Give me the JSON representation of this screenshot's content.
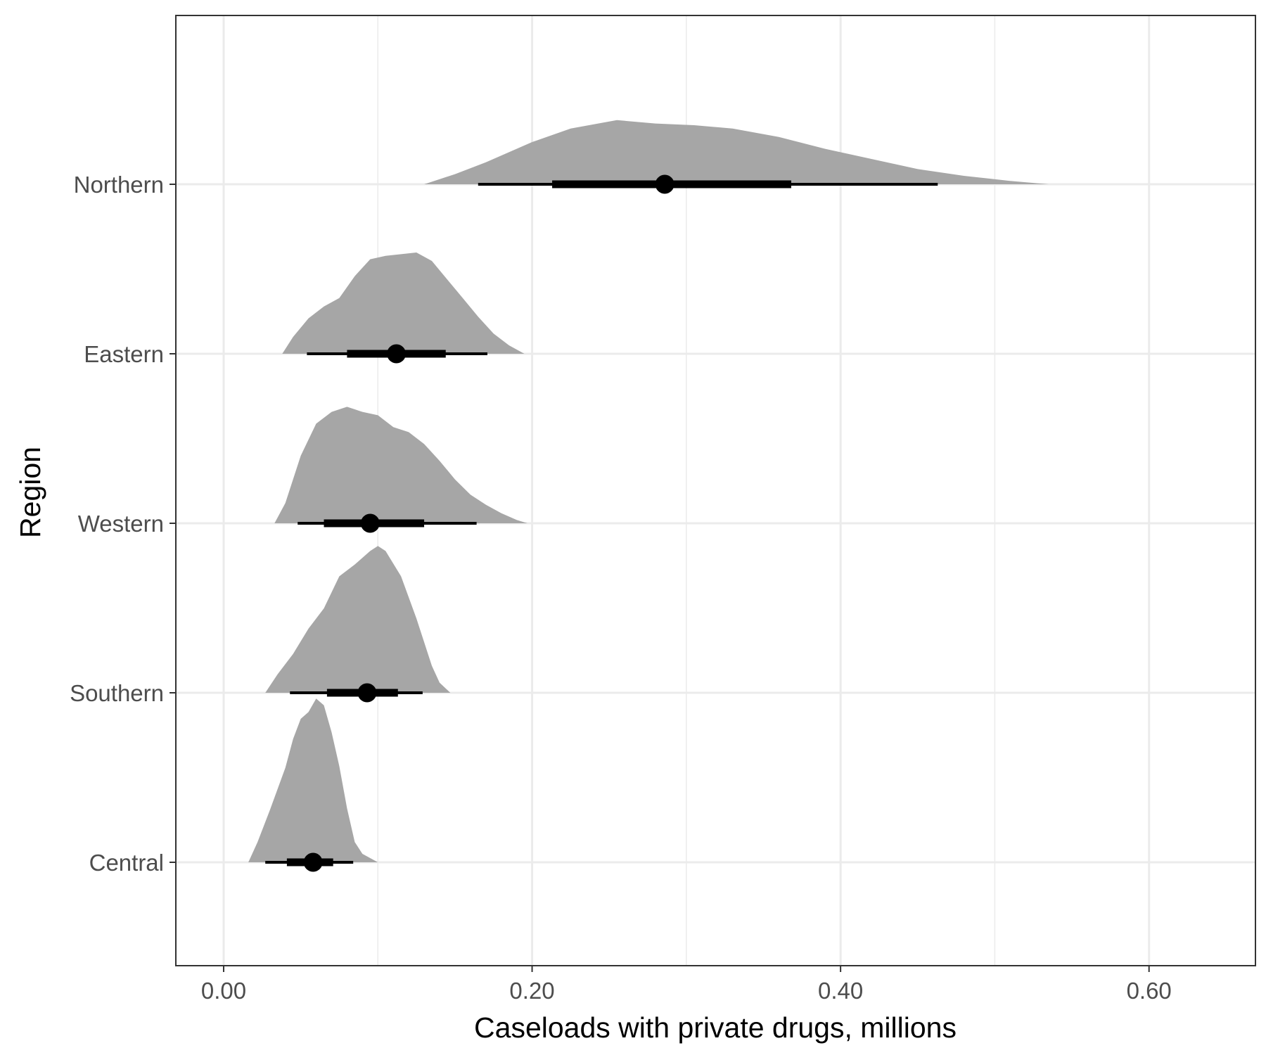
{
  "chart_data": {
    "type": "halfeye",
    "xlabel": "Caseloads with private drugs, millions",
    "ylabel": "Region",
    "xlim": [
      -0.031,
      0.669
    ],
    "x_ticks": [
      0.0,
      0.2,
      0.4,
      0.6
    ],
    "x_tick_labels": [
      "0.00",
      "0.20",
      "0.40",
      "0.60"
    ],
    "x_minor_ticks": [
      0.1,
      0.3,
      0.5
    ],
    "grid": true,
    "colors": {
      "density": "#a6a6a6",
      "interval": "#000000",
      "grid": "#ebebeb",
      "border": "#333333"
    },
    "categories": [
      "Northern",
      "Eastern",
      "Western",
      "Southern",
      "Central"
    ],
    "regions": [
      {
        "name": "Northern",
        "point": 0.286,
        "interval_66": [
          0.213,
          0.368
        ],
        "interval_95": [
          0.165,
          0.463
        ],
        "density": [
          [
            0.13,
            0
          ],
          [
            0.15,
            0.06
          ],
          [
            0.17,
            0.13
          ],
          [
            0.2,
            0.25
          ],
          [
            0.225,
            0.33
          ],
          [
            0.255,
            0.38
          ],
          [
            0.28,
            0.36
          ],
          [
            0.305,
            0.35
          ],
          [
            0.33,
            0.33
          ],
          [
            0.36,
            0.28
          ],
          [
            0.39,
            0.21
          ],
          [
            0.42,
            0.15
          ],
          [
            0.45,
            0.09
          ],
          [
            0.48,
            0.05
          ],
          [
            0.51,
            0.02
          ],
          [
            0.535,
            0
          ]
        ]
      },
      {
        "name": "Eastern",
        "point": 0.112,
        "interval_66": [
          0.08,
          0.144
        ],
        "interval_95": [
          0.054,
          0.171
        ],
        "density": [
          [
            0.038,
            0
          ],
          [
            0.045,
            0.1
          ],
          [
            0.055,
            0.21
          ],
          [
            0.065,
            0.28
          ],
          [
            0.075,
            0.33
          ],
          [
            0.085,
            0.46
          ],
          [
            0.095,
            0.56
          ],
          [
            0.105,
            0.58
          ],
          [
            0.115,
            0.59
          ],
          [
            0.125,
            0.6
          ],
          [
            0.135,
            0.55
          ],
          [
            0.145,
            0.44
          ],
          [
            0.155,
            0.33
          ],
          [
            0.165,
            0.22
          ],
          [
            0.175,
            0.12
          ],
          [
            0.185,
            0.05
          ],
          [
            0.195,
            0
          ]
        ]
      },
      {
        "name": "Western",
        "point": 0.095,
        "interval_66": [
          0.065,
          0.13
        ],
        "interval_95": [
          0.048,
          0.164
        ],
        "density": [
          [
            0.033,
            0
          ],
          [
            0.04,
            0.12
          ],
          [
            0.05,
            0.4
          ],
          [
            0.06,
            0.59
          ],
          [
            0.07,
            0.66
          ],
          [
            0.08,
            0.69
          ],
          [
            0.09,
            0.66
          ],
          [
            0.1,
            0.64
          ],
          [
            0.11,
            0.57
          ],
          [
            0.12,
            0.54
          ],
          [
            0.13,
            0.47
          ],
          [
            0.14,
            0.37
          ],
          [
            0.15,
            0.26
          ],
          [
            0.16,
            0.17
          ],
          [
            0.17,
            0.11
          ],
          [
            0.18,
            0.06
          ],
          [
            0.19,
            0.02
          ],
          [
            0.197,
            0
          ]
        ]
      },
      {
        "name": "Southern",
        "point": 0.093,
        "interval_66": [
          0.067,
          0.113
        ],
        "interval_95": [
          0.043,
          0.129
        ],
        "density": [
          [
            0.027,
            0
          ],
          [
            0.035,
            0.11
          ],
          [
            0.045,
            0.23
          ],
          [
            0.055,
            0.38
          ],
          [
            0.065,
            0.5
          ],
          [
            0.075,
            0.69
          ],
          [
            0.085,
            0.76
          ],
          [
            0.095,
            0.84
          ],
          [
            0.1,
            0.87
          ],
          [
            0.105,
            0.84
          ],
          [
            0.115,
            0.69
          ],
          [
            0.125,
            0.44
          ],
          [
            0.135,
            0.16
          ],
          [
            0.14,
            0.06
          ],
          [
            0.147,
            0
          ]
        ]
      },
      {
        "name": "Central",
        "point": 0.058,
        "interval_66": [
          0.041,
          0.071
        ],
        "interval_95": [
          0.027,
          0.084
        ],
        "density": [
          [
            0.016,
            0
          ],
          [
            0.022,
            0.12
          ],
          [
            0.03,
            0.31
          ],
          [
            0.04,
            0.56
          ],
          [
            0.045,
            0.73
          ],
          [
            0.05,
            0.85
          ],
          [
            0.055,
            0.89
          ],
          [
            0.06,
            0.97
          ],
          [
            0.065,
            0.93
          ],
          [
            0.07,
            0.77
          ],
          [
            0.075,
            0.57
          ],
          [
            0.08,
            0.32
          ],
          [
            0.085,
            0.12
          ],
          [
            0.09,
            0.05
          ],
          [
            0.1,
            0
          ]
        ]
      }
    ]
  }
}
